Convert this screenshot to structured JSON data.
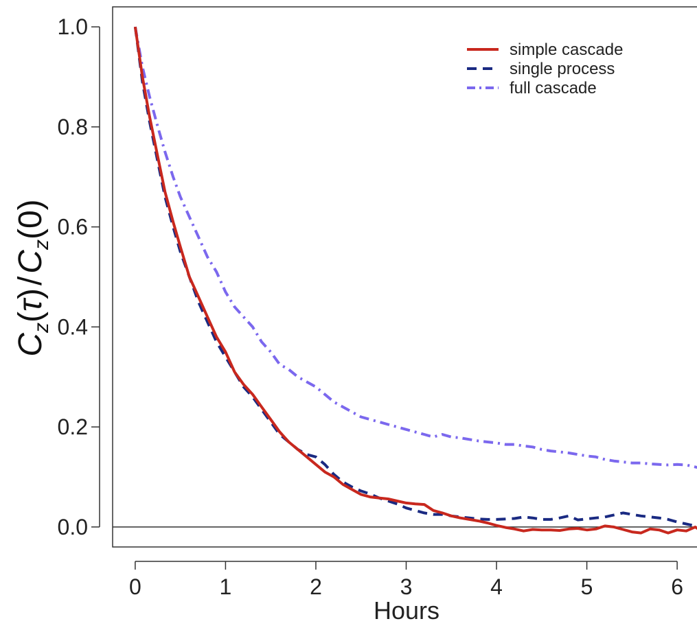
{
  "chart_data": {
    "type": "line",
    "xlabel": "Hours",
    "ylabel": {
      "base": "C",
      "sub": "z",
      "arg_num": "τ",
      "arg_den": "0"
    },
    "xlim": [
      -0.25,
      6.25
    ],
    "ylim": [
      -0.04,
      1.04
    ],
    "xticks": [
      0,
      1,
      2,
      3,
      4,
      5,
      6
    ],
    "yticks": [
      0.0,
      0.2,
      0.4,
      0.6,
      0.8,
      1.0
    ],
    "xtick_labels": [
      "0",
      "1",
      "2",
      "3",
      "4",
      "5",
      "6"
    ],
    "ytick_labels": [
      "0.0",
      "0.2",
      "0.4",
      "0.6",
      "0.8",
      "1.0"
    ],
    "reference_line_y": 0,
    "legend_position": "top-right",
    "series": [
      {
        "name": "simple cascade",
        "color": "#c8281e",
        "style": "solid",
        "x": [
          0,
          0.08,
          0.16,
          0.25,
          0.33,
          0.42,
          0.5,
          0.6,
          0.7,
          0.8,
          0.9,
          1.0,
          1.1,
          1.2,
          1.3,
          1.4,
          1.5,
          1.6,
          1.7,
          1.8,
          1.9,
          2.0,
          2.1,
          2.2,
          2.3,
          2.4,
          2.5,
          2.6,
          2.7,
          2.8,
          2.9,
          3.0,
          3.1,
          3.2,
          3.3,
          3.4,
          3.5,
          3.6,
          3.7,
          3.8,
          3.9,
          4.0,
          4.1,
          4.2,
          4.3,
          4.4,
          4.5,
          4.6,
          4.7,
          4.8,
          4.9,
          5.0,
          5.1,
          5.2,
          5.3,
          5.4,
          5.5,
          5.6,
          5.7,
          5.8,
          5.9,
          6.0,
          6.1,
          6.2,
          6.25
        ],
        "y": [
          1.0,
          0.9,
          0.82,
          0.74,
          0.67,
          0.61,
          0.56,
          0.5,
          0.46,
          0.42,
          0.38,
          0.35,
          0.31,
          0.285,
          0.265,
          0.24,
          0.215,
          0.19,
          0.17,
          0.155,
          0.14,
          0.125,
          0.11,
          0.1,
          0.085,
          0.075,
          0.065,
          0.06,
          0.058,
          0.056,
          0.052,
          0.048,
          0.046,
          0.045,
          0.033,
          0.028,
          0.022,
          0.018,
          0.015,
          0.012,
          0.008,
          0.003,
          -0.001,
          -0.004,
          -0.008,
          -0.005,
          -0.006,
          -0.006,
          -0.007,
          -0.004,
          -0.003,
          -0.006,
          -0.004,
          0.002,
          0.0,
          -0.005,
          -0.01,
          -0.012,
          -0.004,
          -0.006,
          -0.012,
          -0.006,
          -0.008,
          0.0,
          -0.006
        ]
      },
      {
        "name": "single process",
        "color": "#1a2a82",
        "style": "dashed",
        "x": [
          0,
          0.08,
          0.16,
          0.25,
          0.33,
          0.42,
          0.5,
          0.6,
          0.7,
          0.8,
          0.9,
          1.0,
          1.1,
          1.2,
          1.3,
          1.4,
          1.5,
          1.6,
          1.7,
          1.8,
          1.9,
          2.0,
          2.1,
          2.2,
          2.3,
          2.4,
          2.5,
          2.6,
          2.7,
          2.8,
          2.9,
          3.0,
          3.1,
          3.2,
          3.3,
          3.4,
          3.5,
          3.6,
          3.7,
          3.8,
          3.9,
          4.0,
          4.1,
          4.2,
          4.3,
          4.4,
          4.5,
          4.6,
          4.7,
          4.8,
          4.9,
          5.0,
          5.1,
          5.2,
          5.3,
          5.4,
          5.5,
          5.6,
          5.7,
          5.8,
          5.9,
          6.0,
          6.1,
          6.2,
          6.25
        ],
        "y": [
          1.0,
          0.89,
          0.81,
          0.73,
          0.66,
          0.6,
          0.55,
          0.5,
          0.45,
          0.41,
          0.37,
          0.34,
          0.31,
          0.28,
          0.26,
          0.235,
          0.21,
          0.185,
          0.17,
          0.155,
          0.145,
          0.14,
          0.125,
          0.105,
          0.09,
          0.08,
          0.072,
          0.066,
          0.058,
          0.052,
          0.046,
          0.038,
          0.033,
          0.028,
          0.025,
          0.025,
          0.022,
          0.02,
          0.018,
          0.016,
          0.015,
          0.015,
          0.016,
          0.017,
          0.02,
          0.018,
          0.015,
          0.015,
          0.018,
          0.022,
          0.014,
          0.016,
          0.018,
          0.02,
          0.024,
          0.028,
          0.025,
          0.022,
          0.02,
          0.018,
          0.015,
          0.01,
          0.006,
          0.002,
          -0.004
        ]
      },
      {
        "name": "full cascade",
        "color": "#7b68ee",
        "style": "dashdot",
        "x": [
          0,
          0.08,
          0.16,
          0.25,
          0.33,
          0.42,
          0.5,
          0.6,
          0.7,
          0.8,
          0.9,
          1.0,
          1.1,
          1.2,
          1.3,
          1.4,
          1.5,
          1.6,
          1.7,
          1.8,
          1.9,
          2.0,
          2.1,
          2.2,
          2.3,
          2.4,
          2.5,
          2.6,
          2.7,
          2.8,
          2.9,
          3.0,
          3.1,
          3.2,
          3.3,
          3.4,
          3.5,
          3.6,
          3.7,
          3.8,
          3.9,
          4.0,
          4.1,
          4.2,
          4.3,
          4.4,
          4.5,
          4.6,
          4.7,
          4.8,
          4.9,
          5.0,
          5.1,
          5.2,
          5.3,
          5.4,
          5.5,
          5.6,
          5.7,
          5.8,
          5.9,
          6.0,
          6.1,
          6.2,
          6.25
        ],
        "y": [
          1.0,
          0.92,
          0.86,
          0.8,
          0.75,
          0.7,
          0.66,
          0.62,
          0.58,
          0.54,
          0.51,
          0.47,
          0.44,
          0.42,
          0.4,
          0.37,
          0.35,
          0.325,
          0.315,
          0.3,
          0.29,
          0.28,
          0.265,
          0.25,
          0.24,
          0.23,
          0.22,
          0.215,
          0.21,
          0.205,
          0.2,
          0.195,
          0.19,
          0.185,
          0.18,
          0.185,
          0.18,
          0.178,
          0.175,
          0.172,
          0.17,
          0.168,
          0.165,
          0.165,
          0.162,
          0.16,
          0.155,
          0.152,
          0.15,
          0.148,
          0.145,
          0.142,
          0.14,
          0.135,
          0.132,
          0.13,
          0.128,
          0.128,
          0.126,
          0.125,
          0.124,
          0.125,
          0.124,
          0.12,
          0.118
        ]
      }
    ]
  }
}
